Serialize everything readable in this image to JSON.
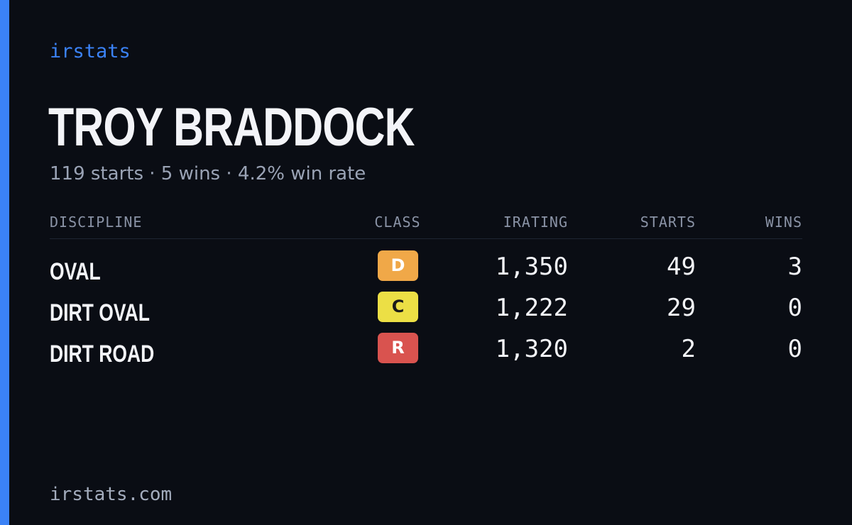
{
  "brand": "irstats",
  "player": {
    "name": "TROY BRADDOCK",
    "summary": "119 starts · 5 wins · 4.2% win rate"
  },
  "table": {
    "headers": {
      "discipline": "DISCIPLINE",
      "class": "CLASS",
      "irating": "IRATING",
      "starts": "STARTS",
      "wins": "WINS"
    },
    "rows": [
      {
        "discipline": "OVAL",
        "class": "D",
        "class_color": "#f0a848",
        "class_text_color": "#ffffff",
        "irating": "1,350",
        "starts": "49",
        "wins": "3"
      },
      {
        "discipline": "DIRT OVAL",
        "class": "C",
        "class_color": "#ecdf45",
        "class_text_color": "#1a1a1a",
        "irating": "1,222",
        "starts": "29",
        "wins": "0"
      },
      {
        "discipline": "DIRT ROAD",
        "class": "R",
        "class_color": "#d9534f",
        "class_text_color": "#ffffff",
        "irating": "1,320",
        "starts": "2",
        "wins": "0"
      }
    ]
  },
  "footer": {
    "url": "irstats.com"
  },
  "colors": {
    "accent": "#3b82f6",
    "background": "#0a0d14"
  }
}
